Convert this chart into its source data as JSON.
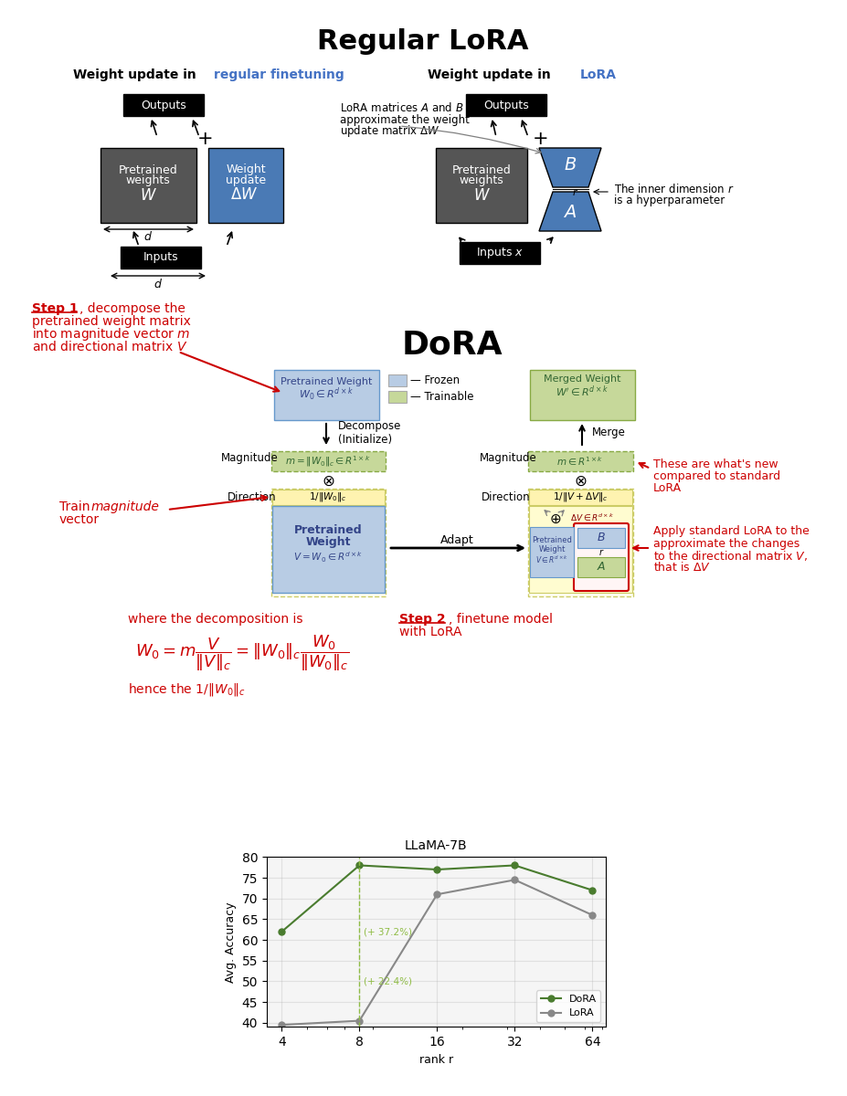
{
  "title": "Regular LoRA",
  "bg_color": "#ffffff",
  "dora_title": "DoRA",
  "chart_title": "LLaMA-7B",
  "chart_xlabel": "rank r",
  "chart_ylabel": "Avg. Accuracy",
  "chart_yticks": [
    40,
    45,
    50,
    55,
    60,
    65,
    70,
    75,
    80
  ],
  "chart_xticks": [
    4,
    8,
    16,
    32,
    64
  ],
  "dora_x": [
    4,
    8,
    16,
    32,
    64
  ],
  "dora_y": [
    62,
    78,
    77,
    78,
    72
  ],
  "lora_x": [
    4,
    8,
    16,
    32,
    64
  ],
  "lora_y": [
    39.5,
    40.5,
    71,
    74.5,
    66
  ],
  "dora_color": "#4a7c2f",
  "lora_color": "#888888",
  "annotation_color": "#8fbc45",
  "gray_box": "#555555",
  "blue_box": "#4a7ab5",
  "light_blue_box": "#b8cce4",
  "green_box": "#c6d89a",
  "yellow_box": "#fef3b0",
  "step1_color": "#cc0000",
  "frozen_color": "#b8cce4",
  "trainable_color": "#c6d89a",
  "blue_text": "#4472c4"
}
